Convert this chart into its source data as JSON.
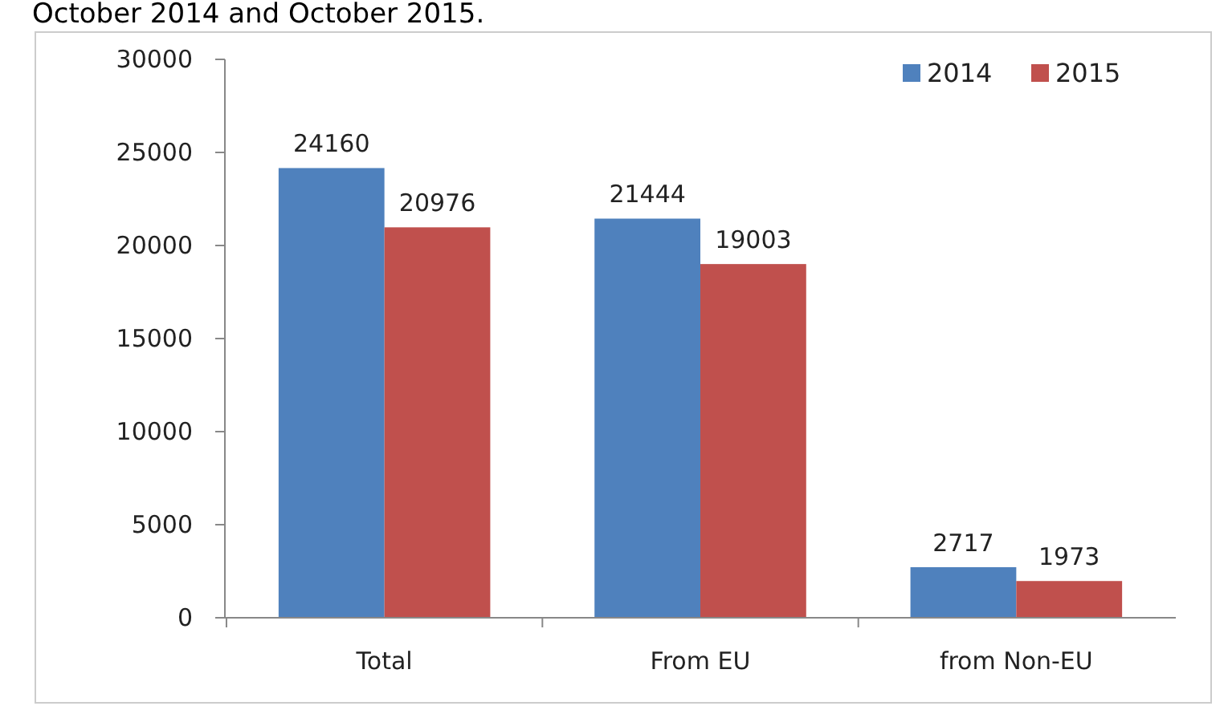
{
  "chart_data": {
    "type": "bar",
    "title": "October 2014 and October 2015.",
    "categories": [
      "Total",
      "From EU",
      "from Non-EU"
    ],
    "series": [
      {
        "name": "2014",
        "color": "#4f81bd",
        "values": [
          24160,
          21444,
          2717
        ]
      },
      {
        "name": "2015",
        "color": "#c0504d",
        "values": [
          20976,
          19003,
          1973
        ]
      }
    ],
    "ylim": [
      0,
      30000
    ],
    "yticks": [
      0,
      5000,
      10000,
      15000,
      20000,
      25000,
      30000
    ],
    "data_labels": true,
    "legend": "top right",
    "grid": false
  }
}
